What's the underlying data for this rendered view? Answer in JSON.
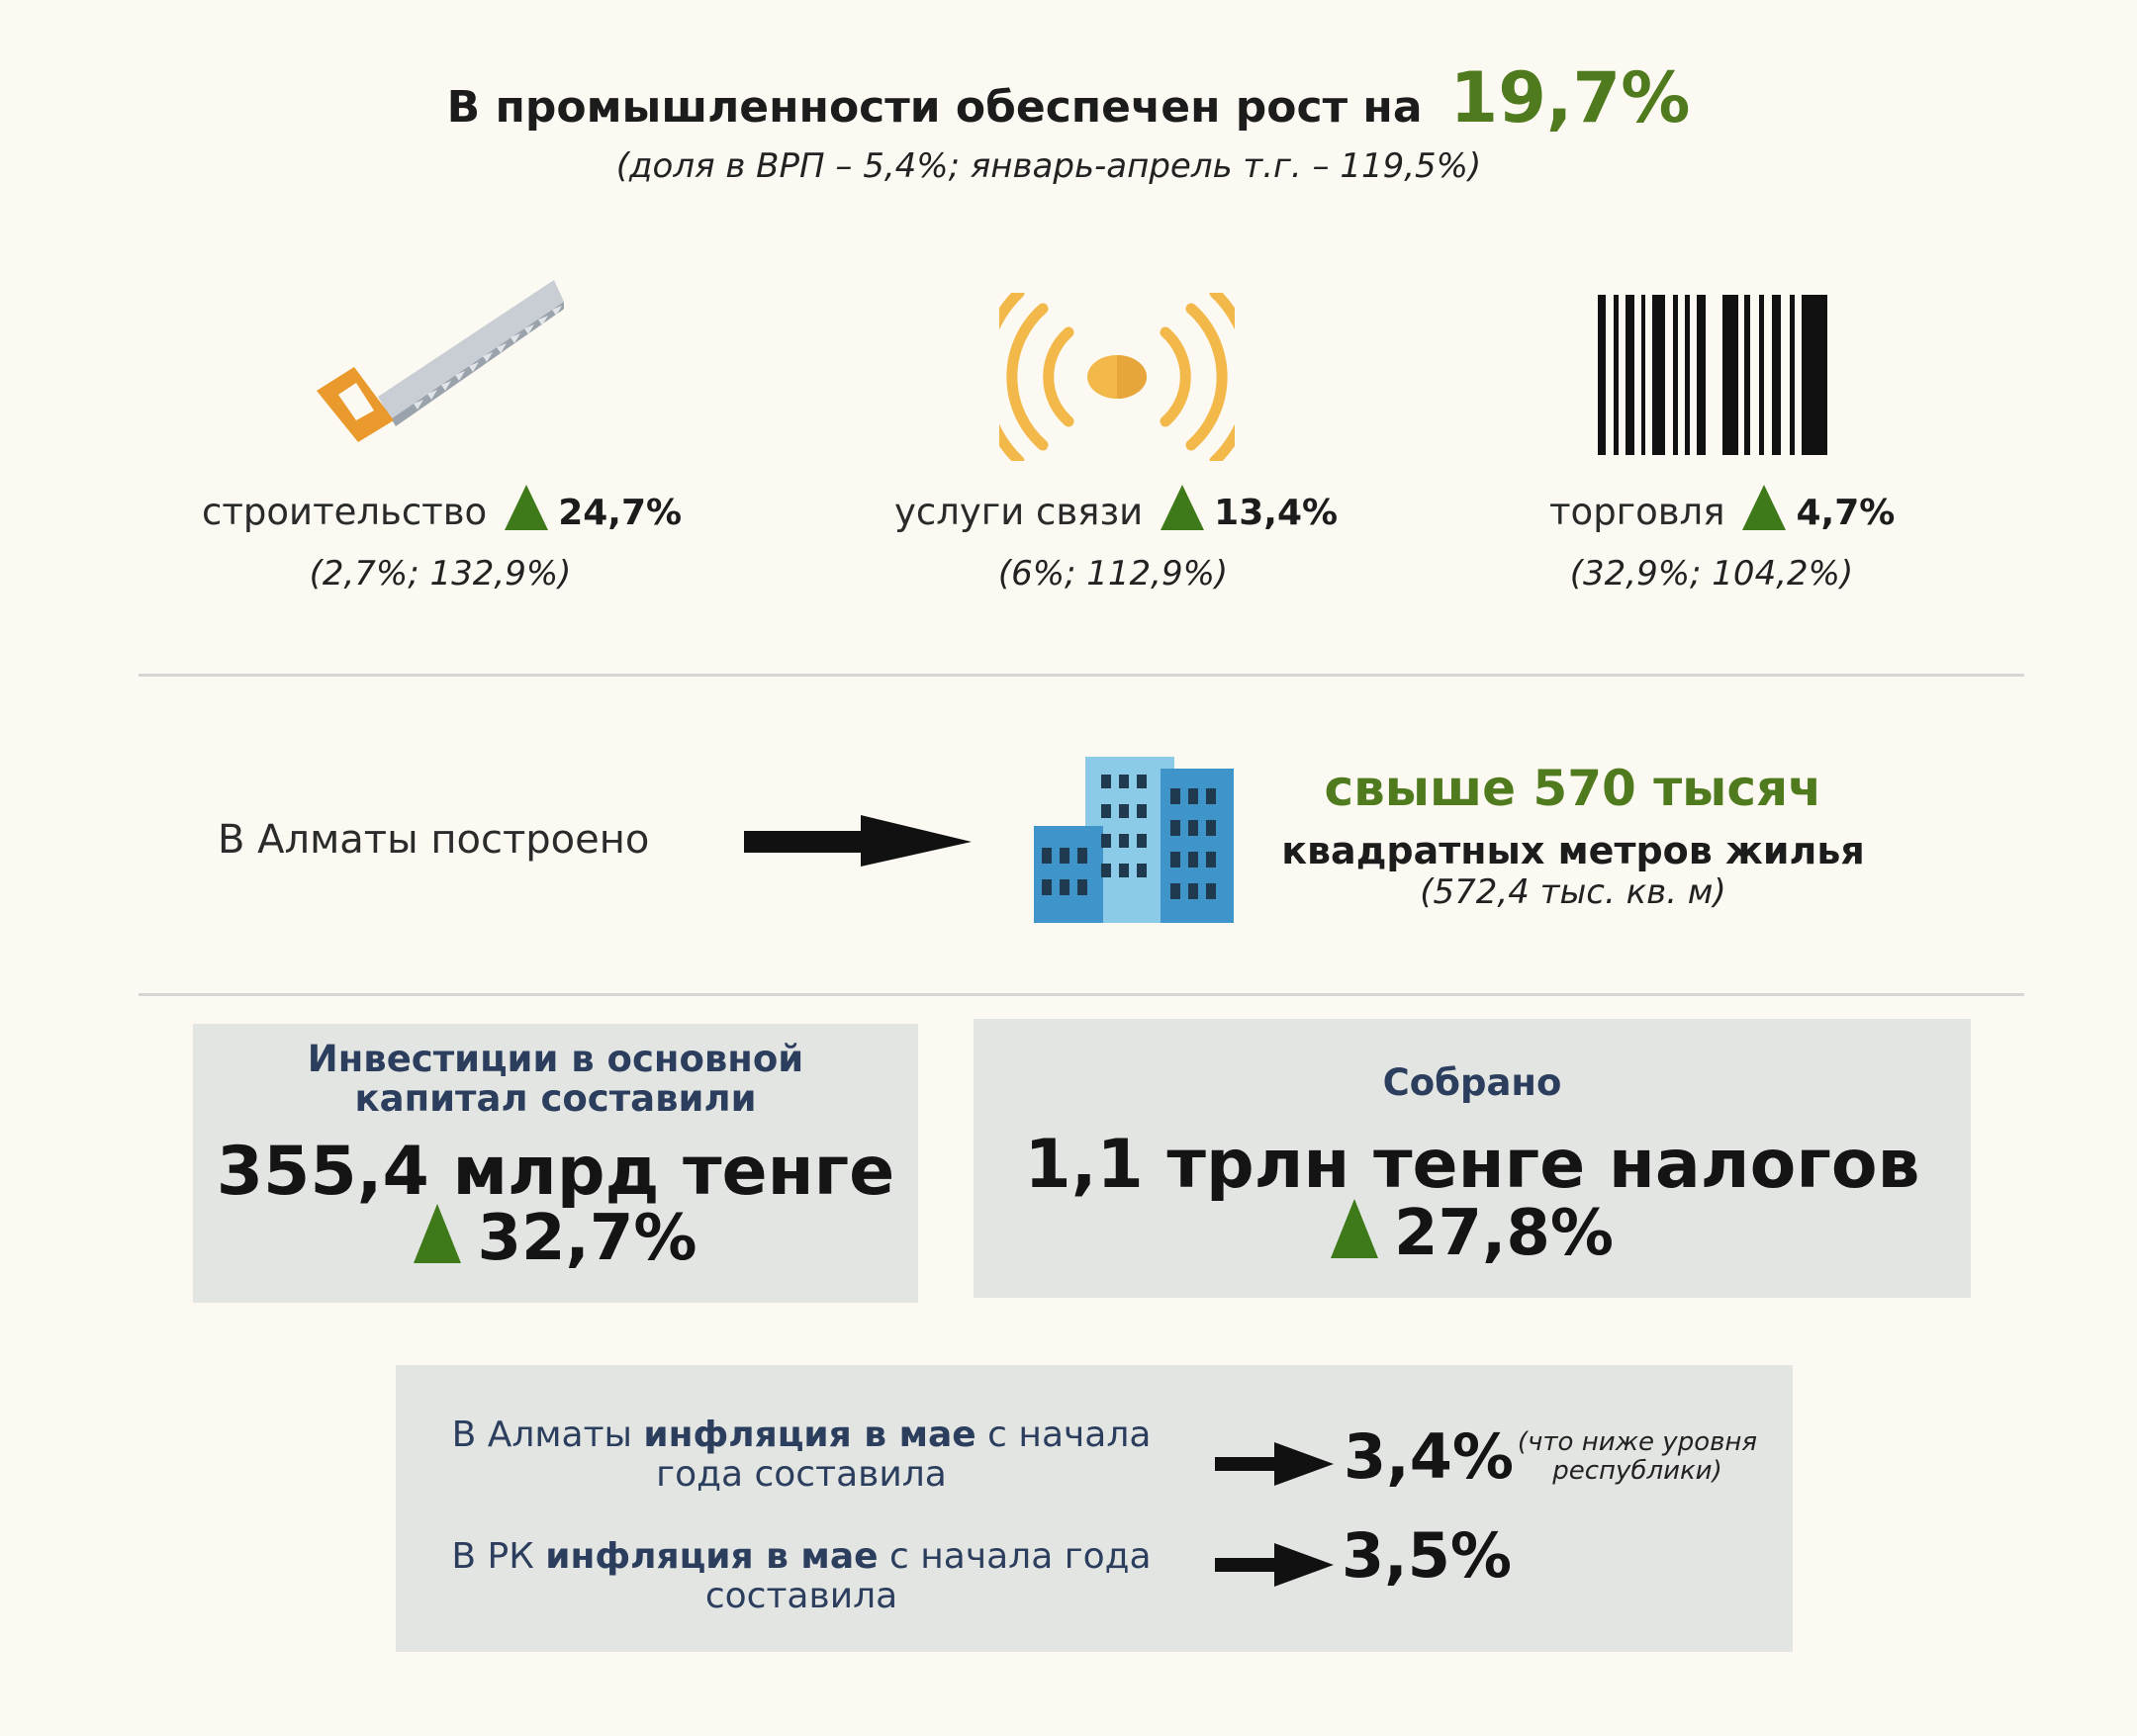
{
  "header": {
    "title": "В промышленности обеспечен рост на",
    "value": "19,7%",
    "subtitle": "(доля в ВРП – 5,4%; январь-апрель т.г. – 119,5%)"
  },
  "sectors": [
    {
      "icon": "saw-icon",
      "label": "строительство",
      "growth": "24,7%",
      "detail": "(2,7%; 132,9%)"
    },
    {
      "icon": "signal-icon",
      "label": "услуги связи",
      "growth": "13,4%",
      "detail": "(6%; 112,9%)"
    },
    {
      "icon": "barcode-icon",
      "label": "торговля",
      "growth": "4,7%",
      "detail": "(32,9%; 104,2%)"
    }
  ],
  "housing": {
    "label": "В Алматы построено",
    "main": "свыше 570 тысяч",
    "sub": "квадратных метров жилья",
    "note": "(572,4 тыс. кв. м)"
  },
  "investments": {
    "heading_line1": "Инвестиции в основной",
    "heading_line2": "капитал составили",
    "amount": "355,4 млрд тенге",
    "growth": "32,7%"
  },
  "taxes": {
    "heading": "Собрано",
    "amount": "1,1 трлн тенге налогов",
    "growth": "27,8%"
  },
  "inflation": {
    "almaty": {
      "pre": "В Алматы ",
      "bold": "инфляция в мае",
      "post": " с начала",
      "line2": "года составила",
      "value": "3,4%",
      "note_line1": "(что ниже уровня",
      "note_line2": "республики)"
    },
    "rk": {
      "pre": "В РК ",
      "bold": "инфляция в мае",
      "post": " с начала года",
      "line2": "составила",
      "value": "3,5%"
    }
  },
  "colors": {
    "accent_green": "#4f7a1d",
    "triangle_green": "#3f7a1a",
    "heading_navy": "#2c3e5d",
    "box_gray": "#e3e5e3",
    "background": "#fcf9f2",
    "signal_gold": "#f2b94a",
    "building_blue": "#3f95c9"
  }
}
